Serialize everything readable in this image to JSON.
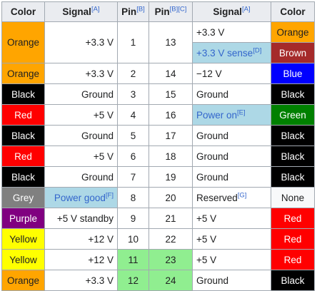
{
  "header": {
    "color_left": "Color",
    "signal_left": "Signal",
    "signal_left_ref": "[A]",
    "pin_left": "Pin",
    "pin_left_ref": "[B]",
    "pin_right": "Pin",
    "pin_right_ref": "[B][C]",
    "signal_right": "Signal",
    "signal_right_ref": "[A]",
    "color_right": "Color"
  },
  "colors": {
    "Orange": "#ffa500",
    "Black": "#000000",
    "Red": "#ff0000",
    "Grey": "#808080",
    "Purple": "#800080",
    "Yellow": "#ffff00",
    "Brown": "#a52a2a",
    "Blue": "#0000ff",
    "Green": "#008000",
    "None": "#f8f9fa",
    "light_blue": "#add8e6",
    "light_green": "#90ee90"
  },
  "rows": [
    {
      "lcolor": "Orange",
      "lsignal": "+3.3 V",
      "lpin": "1",
      "rpin": "13",
      "rsignal": "+3.3 V",
      "rcolor": "Orange"
    },
    {
      "rsignal": "+3.3 V sense",
      "rsignal_ref": "[D]",
      "rcolor": "Brown"
    },
    {
      "lcolor": "Orange",
      "lsignal": "+3.3 V",
      "lpin": "2",
      "rpin": "14",
      "rsignal": "−12 V",
      "rcolor": "Blue"
    },
    {
      "lcolor": "Black",
      "lsignal": "Ground",
      "lpin": "3",
      "rpin": "15",
      "rsignal": "Ground",
      "rcolor": "Black"
    },
    {
      "lcolor": "Red",
      "lsignal": "+5 V",
      "lpin": "4",
      "rpin": "16",
      "rsignal": "Power on",
      "rsignal_ref": "[E]",
      "rcolor": "Green"
    },
    {
      "lcolor": "Black",
      "lsignal": "Ground",
      "lpin": "5",
      "rpin": "17",
      "rsignal": "Ground",
      "rcolor": "Black"
    },
    {
      "lcolor": "Red",
      "lsignal": "+5 V",
      "lpin": "6",
      "rpin": "18",
      "rsignal": "Ground",
      "rcolor": "Black"
    },
    {
      "lcolor": "Black",
      "lsignal": "Ground",
      "lpin": "7",
      "rpin": "19",
      "rsignal": "Ground",
      "rcolor": "Black"
    },
    {
      "lcolor": "Grey",
      "lsignal": "Power good",
      "lsignal_ref": "[F]",
      "lpin": "8",
      "rpin": "20",
      "rsignal": "Reserved",
      "rsignal_ref": "[G]",
      "rcolor": "None"
    },
    {
      "lcolor": "Purple",
      "lsignal": "+5 V standby",
      "lpin": "9",
      "rpin": "21",
      "rsignal": "+5 V",
      "rcolor": "Red"
    },
    {
      "lcolor": "Yellow",
      "lsignal": "+12 V",
      "lpin": "10",
      "rpin": "22",
      "rsignal": "+5 V",
      "rcolor": "Red"
    },
    {
      "lcolor": "Yellow",
      "lsignal": "+12 V",
      "lpin": "11",
      "rpin": "23",
      "rsignal": "+5 V",
      "rcolor": "Red"
    },
    {
      "lcolor": "Orange",
      "lsignal": "+3.3 V",
      "lpin": "12",
      "rpin": "24",
      "rsignal": "Ground",
      "rcolor": "Black"
    }
  ]
}
